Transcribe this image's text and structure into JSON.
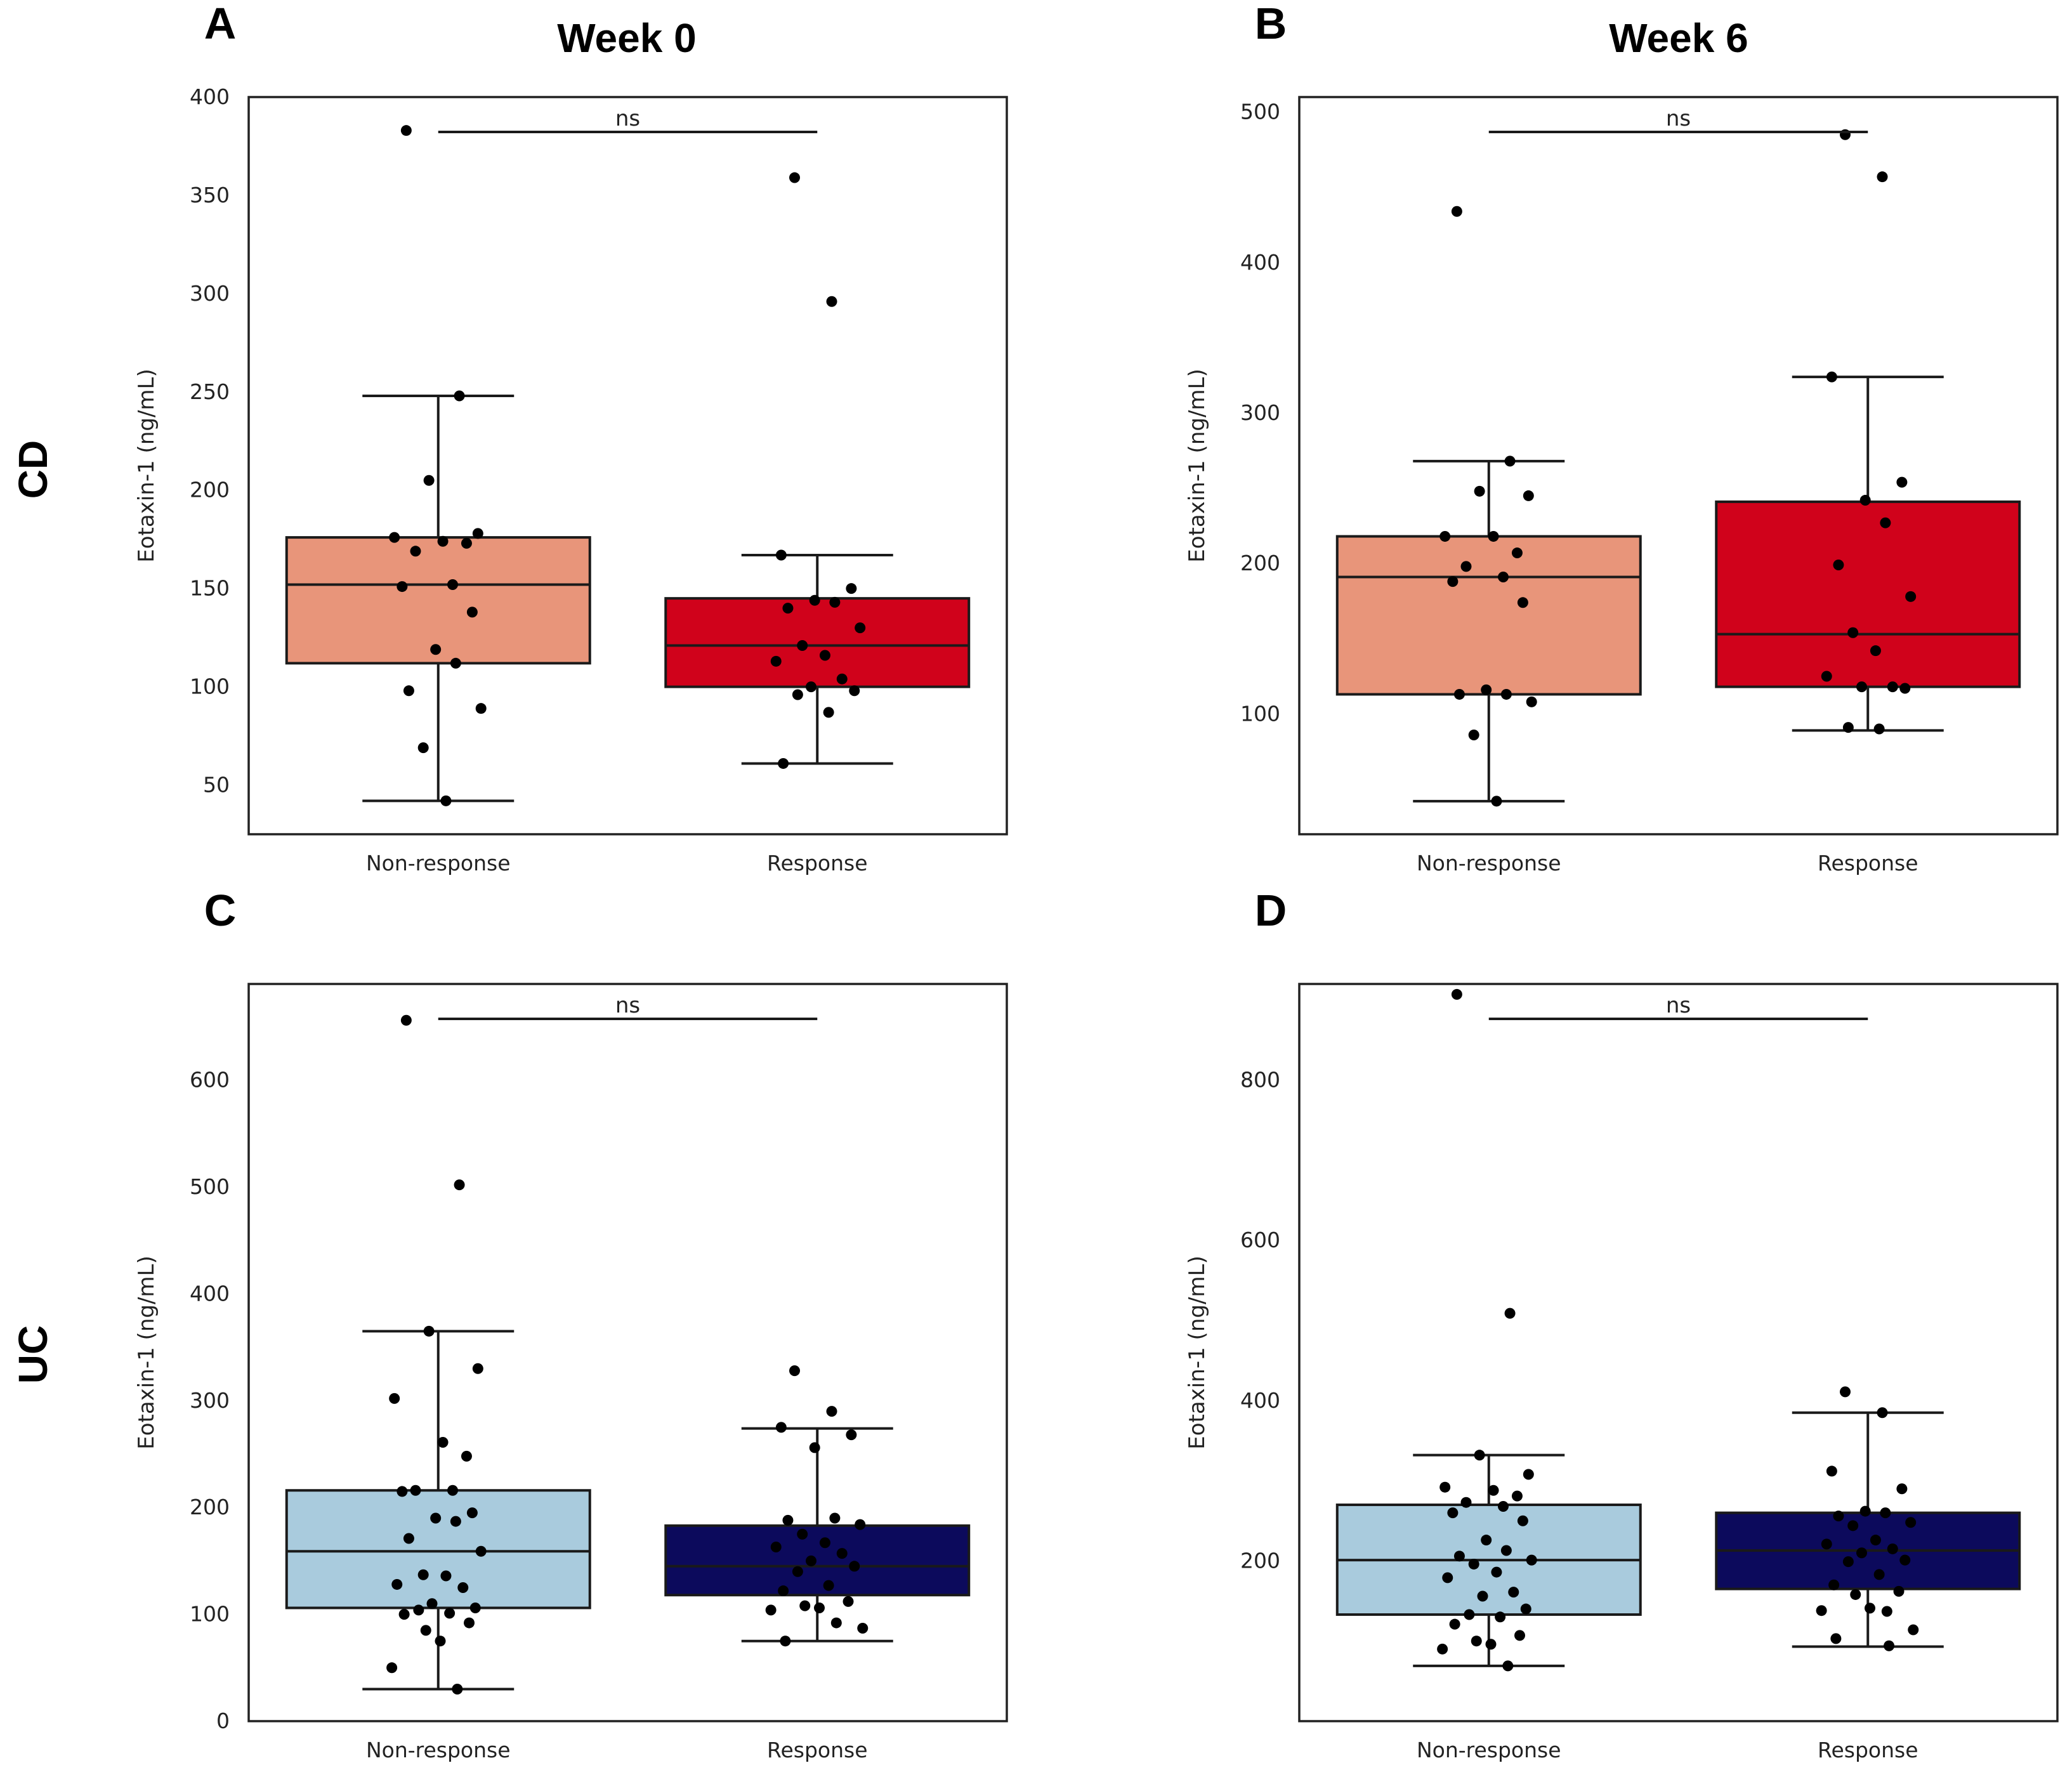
{
  "column_titles": [
    "Week 0",
    "Week 6"
  ],
  "row_labels": [
    "CD",
    "UC"
  ],
  "chart_data": [
    {
      "panel": "A",
      "type": "box",
      "ylabel": "Eotaxin-1 (ng/mL)",
      "ylim": [
        25,
        400
      ],
      "yticks": [
        50,
        100,
        150,
        200,
        250,
        300,
        350,
        400
      ],
      "significance": "ns",
      "groups": [
        {
          "name": "Non-response",
          "color": "#e8957a",
          "q1": 112,
          "median": 152,
          "q3": 176,
          "whisker_low": 42,
          "whisker_high": 248,
          "points": [
            383,
            248,
            205,
            178,
            176,
            174,
            173,
            169,
            152,
            151,
            138,
            119,
            112,
            98,
            89,
            69,
            42
          ]
        },
        {
          "name": "Response",
          "color": "#d0021b",
          "q1": 100,
          "median": 121,
          "q3": 145,
          "whisker_low": 61,
          "whisker_high": 167,
          "points": [
            359,
            296,
            167,
            150,
            144,
            143,
            140,
            130,
            121,
            116,
            113,
            104,
            100,
            98,
            96,
            87,
            61
          ]
        }
      ]
    },
    {
      "panel": "B",
      "type": "box",
      "ylabel": "Eotaxin-1 (ng/mL)",
      "ylim": [
        20,
        510
      ],
      "yticks": [
        100,
        200,
        300,
        400,
        500
      ],
      "significance": "ns",
      "groups": [
        {
          "name": "Non-response",
          "color": "#e8957a",
          "q1": 113,
          "median": 191,
          "q3": 218,
          "whisker_low": 42,
          "whisker_high": 268,
          "points": [
            434,
            268,
            248,
            245,
            218,
            218,
            207,
            198,
            191,
            188,
            174,
            116,
            113,
            113,
            108,
            86,
            42
          ]
        },
        {
          "name": "Response",
          "color": "#d0021b",
          "q1": 118,
          "median": 153,
          "q3": 241,
          "whisker_low": 89,
          "whisker_high": 324,
          "points": [
            485,
            457,
            324,
            254,
            242,
            227,
            199,
            178,
            154,
            142,
            125,
            118,
            118,
            117,
            91,
            90
          ]
        }
      ]
    },
    {
      "panel": "C",
      "type": "box",
      "ylabel": "Eotaxin-1 (ng/mL)",
      "ylim": [
        0,
        690
      ],
      "yticks": [
        0,
        100,
        200,
        300,
        400,
        500,
        600
      ],
      "significance": "ns",
      "groups": [
        {
          "name": "Non-response",
          "color": "#a9cbdd",
          "q1": 106,
          "median": 159,
          "q3": 216,
          "whisker_low": 30,
          "whisker_high": 365,
          "points": [
            656,
            502,
            365,
            330,
            302,
            261,
            248,
            216,
            216,
            215,
            195,
            190,
            187,
            171,
            159,
            137,
            136,
            128,
            125,
            110,
            106,
            104,
            101,
            100,
            92,
            85,
            75,
            50,
            30
          ]
        },
        {
          "name": "Response",
          "color": "#0c0a5c",
          "q1": 118,
          "median": 145,
          "q3": 183,
          "whisker_low": 75,
          "whisker_high": 274,
          "points": [
            328,
            290,
            275,
            268,
            256,
            190,
            188,
            184,
            175,
            167,
            163,
            157,
            150,
            145,
            140,
            127,
            122,
            112,
            108,
            106,
            104,
            92,
            87,
            75
          ]
        }
      ]
    },
    {
      "panel": "D",
      "type": "box",
      "ylabel": "Eotaxin-1 (ng/mL)",
      "ylim": [
        0,
        920
      ],
      "yticks": [
        200,
        400,
        600,
        800
      ],
      "significance": "ns",
      "groups": [
        {
          "name": "Non-response",
          "color": "#a9cbdd",
          "q1": 133,
          "median": 201,
          "q3": 270,
          "whisker_low": 69,
          "whisker_high": 332,
          "points": [
            907,
            509,
            332,
            308,
            292,
            288,
            281,
            273,
            268,
            260,
            250,
            226,
            213,
            206,
            201,
            196,
            186,
            179,
            161,
            156,
            140,
            133,
            130,
            121,
            107,
            100,
            96,
            90,
            69
          ]
        },
        {
          "name": "Response",
          "color": "#0c0a5c",
          "q1": 165,
          "median": 213,
          "q3": 260,
          "whisker_low": 93,
          "whisker_high": 385,
          "points": [
            411,
            385,
            312,
            290,
            262,
            260,
            256,
            248,
            244,
            226,
            221,
            215,
            210,
            201,
            199,
            183,
            170,
            162,
            158,
            141,
            138,
            137,
            114,
            103,
            94
          ]
        }
      ]
    }
  ]
}
